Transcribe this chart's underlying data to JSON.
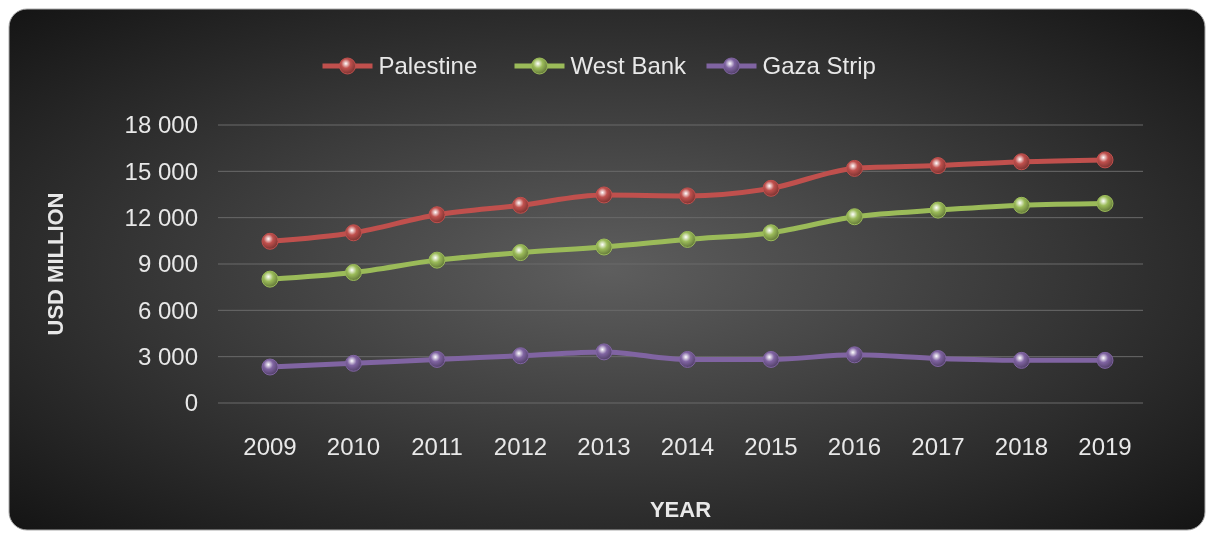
{
  "chart_data": {
    "type": "line",
    "xlabel": "YEAR",
    "ylabel": "USD MILLION",
    "categories": [
      "2009",
      "2010",
      "2011",
      "2012",
      "2013",
      "2014",
      "2015",
      "2016",
      "2017",
      "2018",
      "2019"
    ],
    "series": [
      {
        "name": "Palestine",
        "color": "#c0504d",
        "values": [
          10470,
          11020,
          12190,
          12800,
          13470,
          13410,
          13900,
          15190,
          15370,
          15620,
          15740
        ]
      },
      {
        "name": "West Bank",
        "color": "#9bbb59",
        "values": [
          8020,
          8450,
          9250,
          9740,
          10100,
          10590,
          11020,
          12060,
          12490,
          12800,
          12920
        ]
      },
      {
        "name": "Gaza Strip",
        "color": "#8064a2",
        "values": [
          2330,
          2570,
          2820,
          3060,
          3310,
          2820,
          2820,
          3120,
          2880,
          2760,
          2760
        ]
      }
    ],
    "ylim": [
      0,
      18000
    ],
    "yticks": [
      {
        "value": 0,
        "label": "0"
      },
      {
        "value": 3000,
        "label": "3 000"
      },
      {
        "value": 6000,
        "label": "6 000"
      },
      {
        "value": 9000,
        "label": "9 000"
      },
      {
        "value": 12000,
        "label": "12 000"
      },
      {
        "value": 15000,
        "label": "15 000"
      },
      {
        "value": 18000,
        "label": "18 000"
      }
    ],
    "grid": "y",
    "legend": "top",
    "marker": "circle",
    "line_style": "solid"
  }
}
